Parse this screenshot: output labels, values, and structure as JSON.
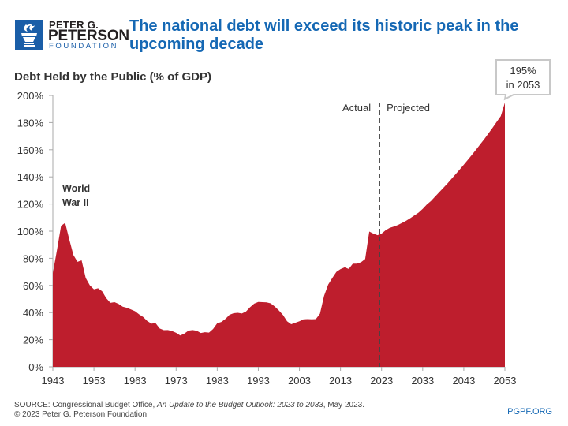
{
  "header": {
    "logo": {
      "line1": "PETER G.",
      "line2": "PETERSON",
      "line3": "FOUNDATION"
    },
    "title": "The national debt will exceed its historic peak in the upcoming decade"
  },
  "footer": {
    "source_prefix": "SOURCE: Congressional Budget Office, ",
    "source_italic": "An Update to the Budget Outlook: 2023 to 2033",
    "source_suffix": ", May 2023.",
    "copyright": "© 2023 Peter G. Peterson Foundation",
    "site": "PGPF.ORG"
  },
  "colors": {
    "fill": "#be1e2d",
    "accent": "#1568b4",
    "logo_box": "#1a5ea8"
  },
  "chart_data": {
    "type": "area",
    "title": "Debt Held by the Public (% of GDP)",
    "xlabel": "",
    "ylabel": "Debt Held by the Public (% of GDP)",
    "xlim": [
      1943,
      2053
    ],
    "ylim": [
      0,
      200
    ],
    "x_ticks": [
      1943,
      1953,
      1963,
      1973,
      1983,
      1993,
      2003,
      2013,
      2023,
      2033,
      2043,
      2053
    ],
    "y_ticks": [
      0,
      20,
      40,
      60,
      80,
      100,
      120,
      140,
      160,
      180,
      200
    ],
    "y_tick_labels": [
      "0%",
      "20%",
      "40%",
      "60%",
      "80%",
      "100%",
      "120%",
      "140%",
      "160%",
      "180%",
      "200%"
    ],
    "grid": false,
    "divider": {
      "x": 2022.5,
      "left_label": "Actual",
      "right_label": "Projected"
    },
    "annotations": [
      {
        "text_lines": [
          "World",
          "War II"
        ],
        "x": 1946
      },
      {
        "text_lines": [
          "195%",
          "in 2053"
        ],
        "x": 2053,
        "y": 195
      }
    ],
    "series": [
      {
        "name": "Debt Held by the Public",
        "x": [
          1943,
          1944,
          1945,
          1946,
          1947,
          1948,
          1949,
          1950,
          1951,
          1952,
          1953,
          1954,
          1955,
          1956,
          1957,
          1958,
          1959,
          1960,
          1961,
          1962,
          1963,
          1964,
          1965,
          1966,
          1967,
          1968,
          1969,
          1970,
          1971,
          1972,
          1973,
          1974,
          1975,
          1976,
          1977,
          1978,
          1979,
          1980,
          1981,
          1982,
          1983,
          1984,
          1985,
          1986,
          1987,
          1988,
          1989,
          1990,
          1991,
          1992,
          1993,
          1994,
          1995,
          1996,
          1997,
          1998,
          1999,
          2000,
          2001,
          2002,
          2003,
          2004,
          2005,
          2006,
          2007,
          2008,
          2009,
          2010,
          2011,
          2012,
          2013,
          2014,
          2015,
          2016,
          2017,
          2018,
          2019,
          2020,
          2021,
          2022,
          2023,
          2024,
          2025,
          2026,
          2027,
          2028,
          2029,
          2030,
          2031,
          2032,
          2033,
          2034,
          2035,
          2036,
          2037,
          2038,
          2039,
          2040,
          2041,
          2042,
          2043,
          2044,
          2045,
          2046,
          2047,
          2048,
          2049,
          2050,
          2051,
          2052,
          2053
        ],
        "values": [
          69.2,
          86.0,
          103.9,
          106.1,
          93.9,
          82.4,
          77.4,
          78.5,
          65.5,
          60.1,
          57.1,
          57.9,
          55.7,
          50.6,
          47.2,
          47.7,
          46.4,
          44.3,
          43.5,
          42.3,
          41.0,
          38.7,
          36.7,
          33.7,
          31.8,
          32.2,
          28.3,
          27.0,
          27.1,
          26.4,
          25.1,
          23.1,
          24.5,
          26.7,
          27.1,
          26.6,
          24.9,
          25.5,
          25.2,
          27.9,
          32.1,
          33.1,
          35.3,
          38.4,
          39.5,
          39.8,
          39.3,
          40.8,
          44.0,
          46.6,
          47.8,
          47.7,
          47.5,
          46.8,
          44.5,
          41.6,
          38.2,
          33.6,
          31.4,
          32.5,
          33.6,
          35.0,
          35.2,
          35.0,
          35.2,
          39.2,
          52.3,
          60.6,
          65.5,
          70.0,
          72.0,
          73.3,
          72.2,
          76.0,
          76.0,
          77.1,
          79.4,
          99.7,
          98.2,
          97.0,
          98.2,
          100.7,
          102.5,
          103.4,
          104.6,
          106.1,
          107.7,
          109.6,
          111.6,
          113.7,
          116.4,
          119.6,
          122.2,
          125.4,
          128.6,
          131.8,
          135.0,
          138.5,
          141.9,
          145.4,
          149.0,
          152.6,
          156.3,
          160.1,
          164.0,
          167.9,
          172.0,
          176.2,
          180.5,
          184.8,
          194.8
        ]
      }
    ]
  }
}
